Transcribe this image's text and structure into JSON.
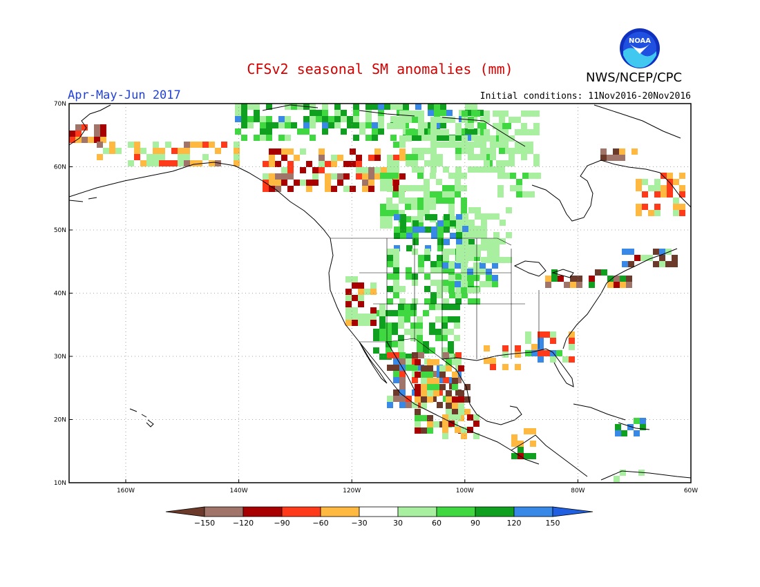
{
  "header": {
    "title": "CFSv2 seasonal SM anomalies (mm)",
    "period": "Apr-May-Jun 2017",
    "initial_conditions": "Initial conditions: 11Nov2016-20Nov2016",
    "agency": "NWS/NCEP/CPC",
    "logo_text": "NOAA"
  },
  "map": {
    "lat_labels": [
      "70N",
      "60N",
      "50N",
      "40N",
      "30N",
      "20N",
      "10N"
    ],
    "lon_labels": [
      "160W",
      "140W",
      "120W",
      "100W",
      "80W",
      "60W"
    ],
    "grid": "dotted"
  },
  "colorbar": {
    "labels": [
      "−150",
      "−120",
      "−90",
      "−60",
      "−30",
      "30",
      "60",
      "90",
      "120",
      "150"
    ],
    "colors": [
      "#6b3a2a",
      "#a07468",
      "#a80000",
      "#ff3a1a",
      "#ffb840",
      "#ffffff",
      "#a8f0a0",
      "#40d840",
      "#10a020",
      "#3888e8",
      "#2060e0"
    ]
  }
}
